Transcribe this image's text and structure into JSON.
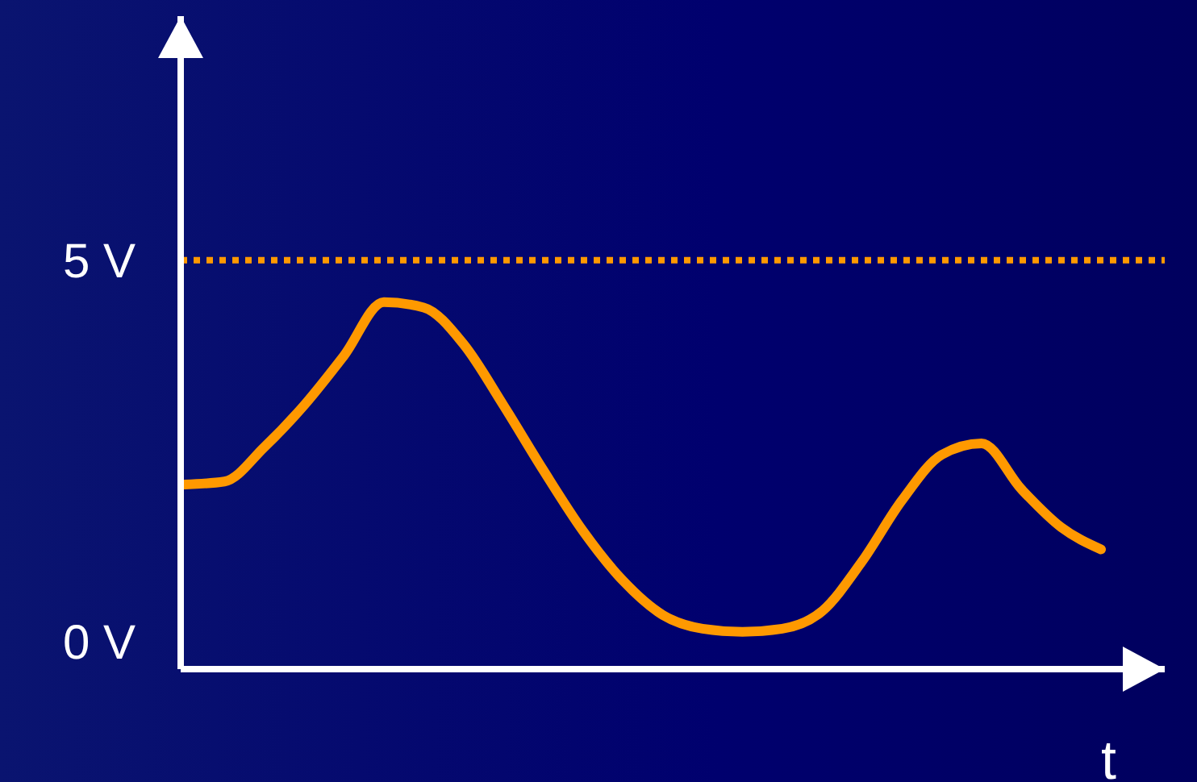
{
  "chart_data": {
    "type": "line",
    "xlabel": "t",
    "categories": [
      null,
      null,
      null,
      null,
      null,
      null,
      null,
      null,
      null,
      null,
      null,
      null,
      null,
      null,
      null,
      null,
      null,
      null,
      null,
      null,
      null,
      null,
      null,
      null
    ],
    "series": [
      {
        "color": "#ff9900",
        "values": [
          2.06,
          2.1,
          2.55,
          3.1,
          3.75,
          4.45,
          4.38,
          3.9,
          3.1,
          2.25,
          1.45,
          0.8,
          0.35,
          0.17,
          0.13,
          0.17,
          0.4,
          1.05,
          1.85,
          2.45,
          2.6,
          2.0,
          1.5,
          1.21
        ]
      }
    ],
    "ylim": [
      -0.36,
      8.2
    ],
    "yticks": [
      {
        "value": 0,
        "label": "0 V"
      },
      {
        "value": 5,
        "label": "5 V"
      }
    ],
    "ref_lines": [
      {
        "axis": "y",
        "value": 5,
        "color": "#ff9900",
        "line_style": "dotted"
      }
    ],
    "tick_labels": "y",
    "grid": false,
    "legend": false,
    "marker": "none",
    "line_style": "solid"
  }
}
